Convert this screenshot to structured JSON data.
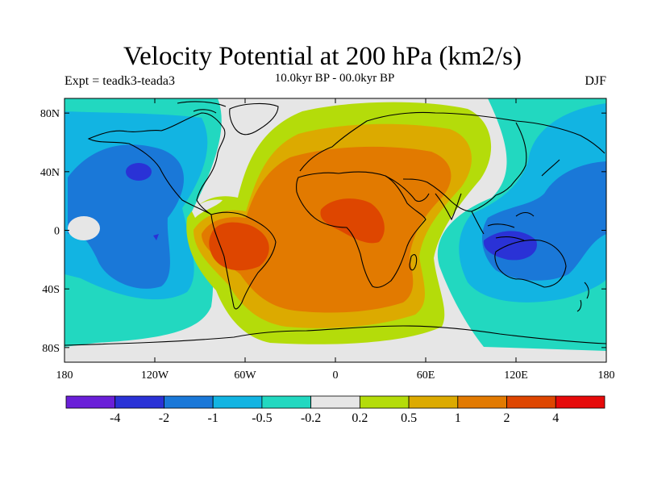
{
  "title": "Velocity Potential at 200 hPa (km2/s)",
  "subtitle": "10.0kyr BP - 00.0kyr BP",
  "left_label": "Expt = teadk3-teada3",
  "right_label": "DJF",
  "map": {
    "lon_range": [
      -180,
      180
    ],
    "lat_range": [
      -90,
      90
    ],
    "x_ticks": [
      {
        "lon": -180,
        "label": "180"
      },
      {
        "lon": -120,
        "label": "120W"
      },
      {
        "lon": -60,
        "label": "60W"
      },
      {
        "lon": 0,
        "label": "0"
      },
      {
        "lon": 60,
        "label": "60E"
      },
      {
        "lon": 120,
        "label": "120E"
      },
      {
        "lon": 180,
        "label": "180"
      }
    ],
    "y_ticks": [
      {
        "lat": 80,
        "label": "80N"
      },
      {
        "lat": 40,
        "label": "40N"
      },
      {
        "lat": 0,
        "label": "0"
      },
      {
        "lat": -40,
        "label": "40S"
      },
      {
        "lat": -80,
        "label": "80S"
      }
    ]
  },
  "colorbar": {
    "colors": [
      "#6a1fd8",
      "#2a32d6",
      "#1a78d8",
      "#12b4e2",
      "#22d8c0",
      "#e6e6e6",
      "#b4dc0a",
      "#dcaa00",
      "#e27a00",
      "#de4600",
      "#e60a0a"
    ],
    "labels": [
      "-4",
      "-2",
      "-1",
      "-0.5",
      "-0.2",
      "0.2",
      "0.5",
      "1",
      "2",
      "4"
    ]
  }
}
